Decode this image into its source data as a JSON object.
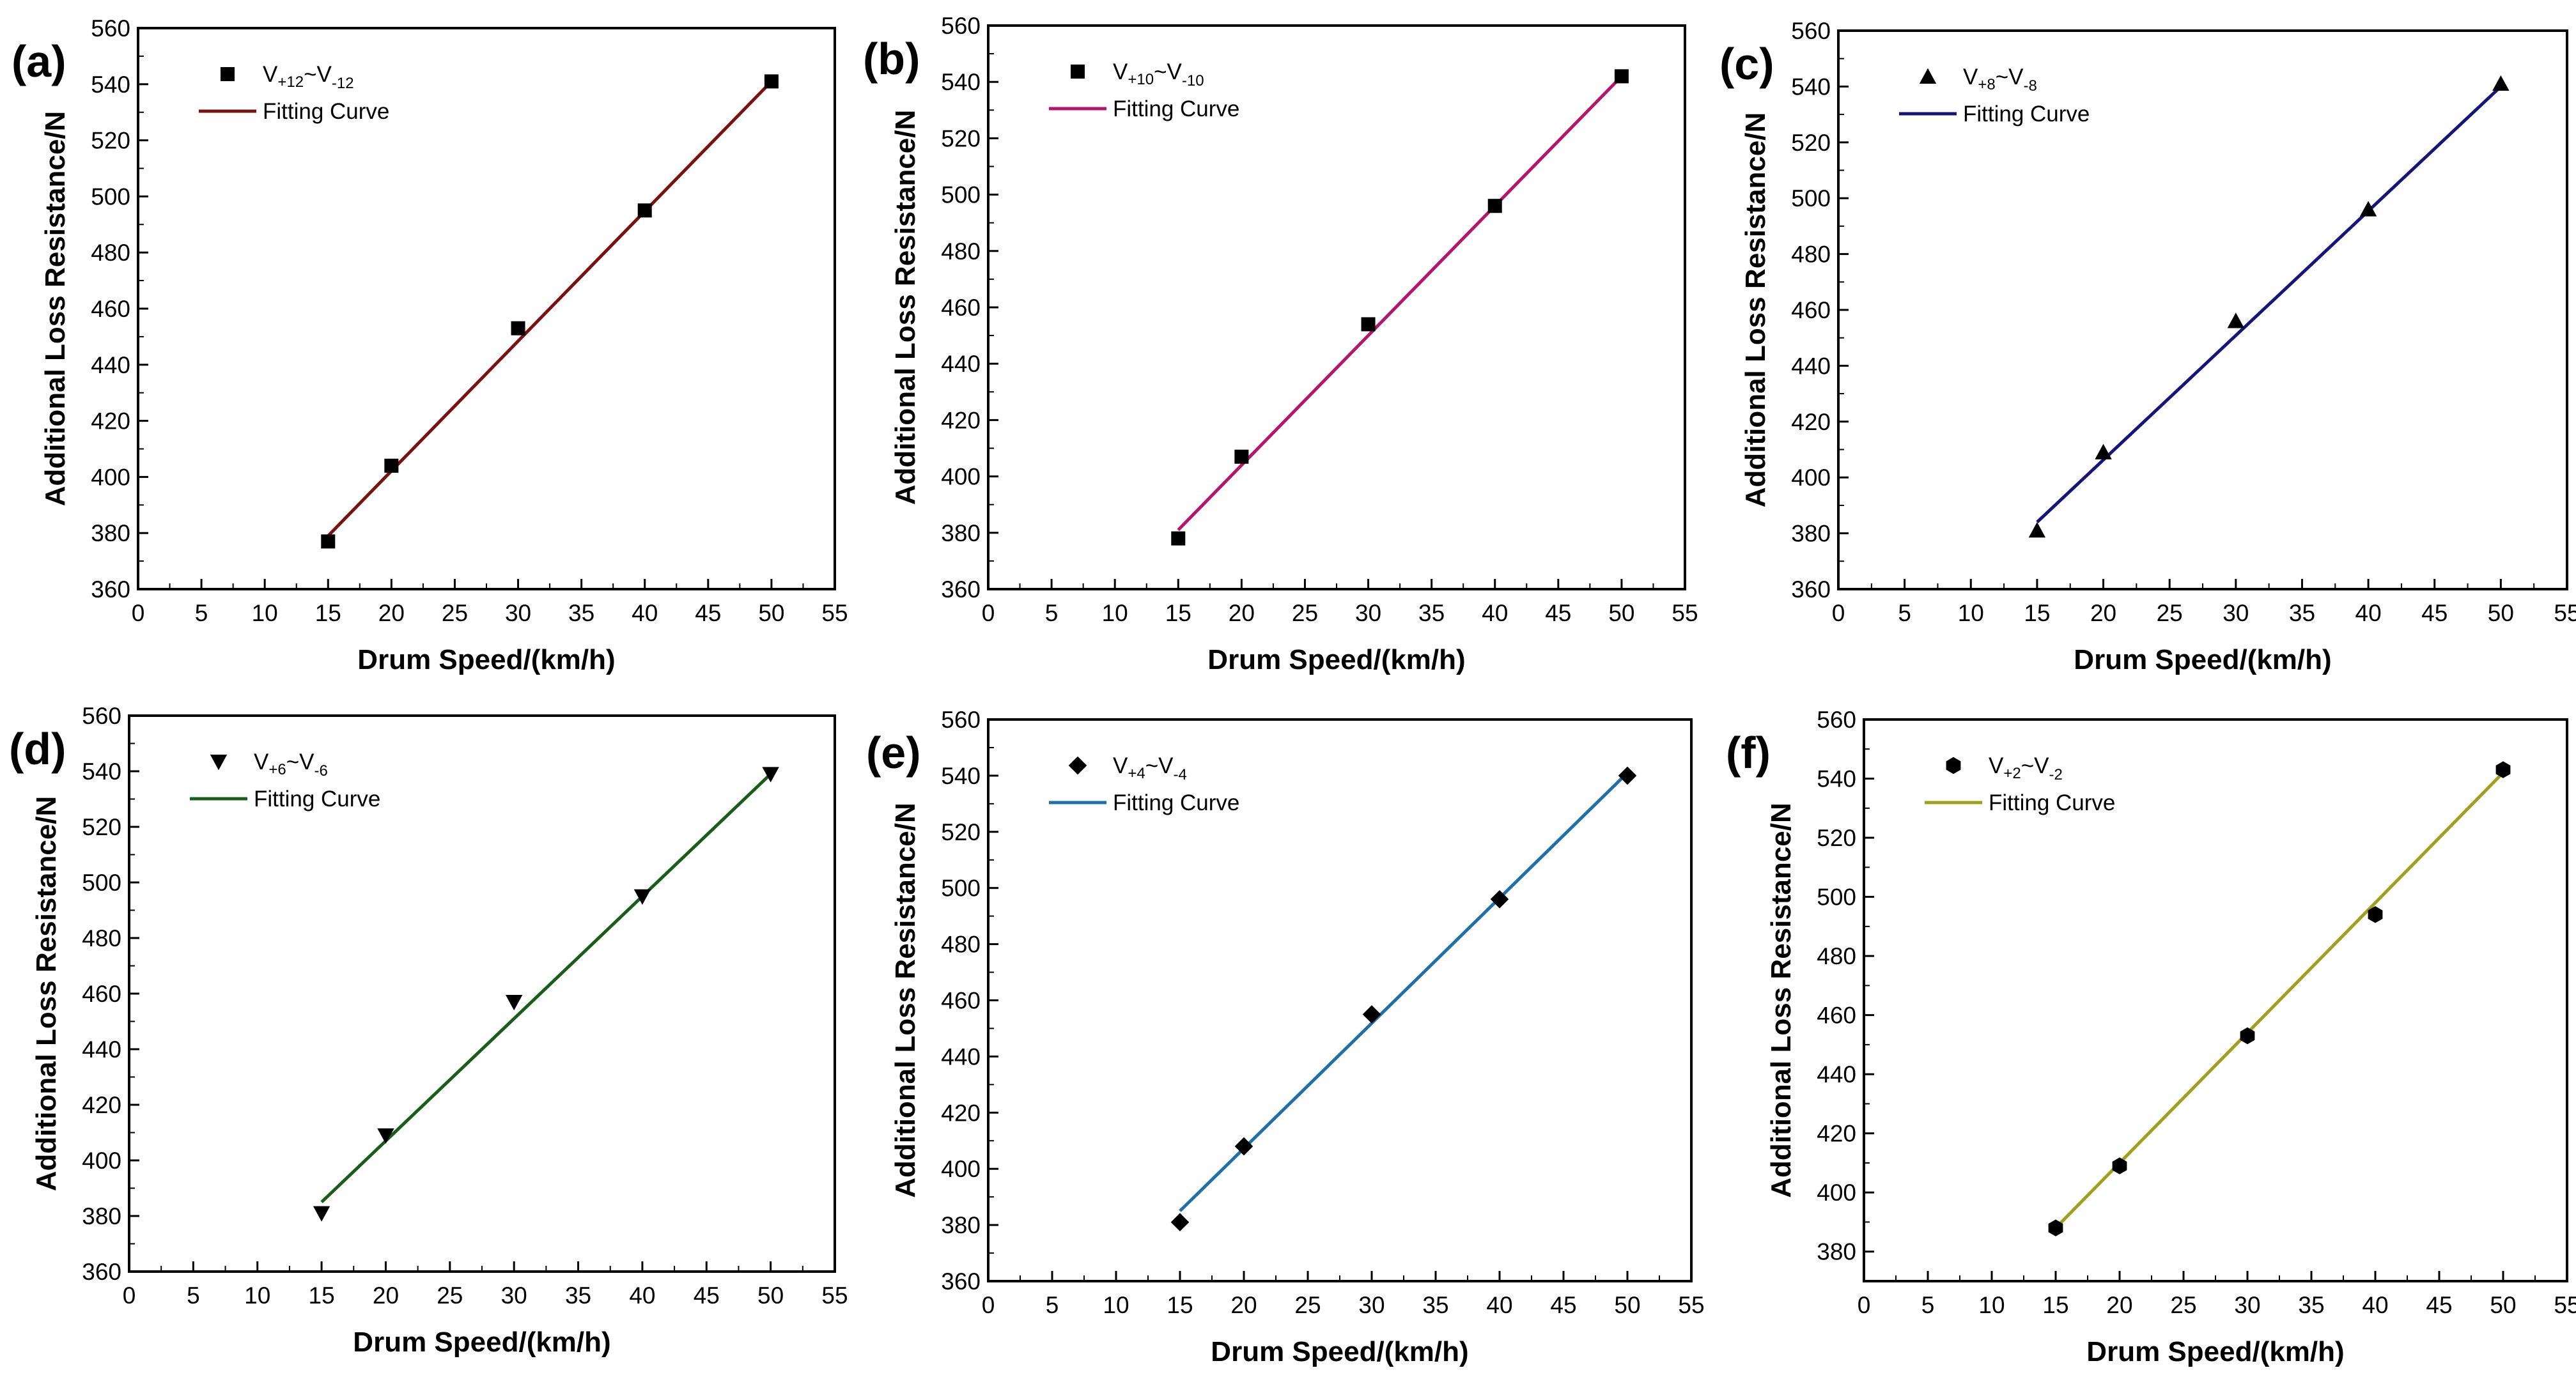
{
  "chart_data": [
    {
      "type": "scatter",
      "panel": "(a)",
      "title": "",
      "xlabel": "Drum Speed/(km/h)",
      "ylabel": "Additional Loss Resistance/N",
      "xlim": [
        0,
        55
      ],
      "ylim": [
        360,
        560
      ],
      "xticks": [
        0,
        5,
        10,
        15,
        20,
        25,
        30,
        35,
        40,
        45,
        50,
        55
      ],
      "yticks": [
        360,
        380,
        400,
        420,
        440,
        460,
        480,
        500,
        520,
        540,
        560
      ],
      "legend": {
        "position": "top-left",
        "series_label": {
          "base": "V",
          "sup": "+12",
          "mid": "~V",
          "sub": "-12"
        },
        "fit_label": "Fitting Curve"
      },
      "marker": "square",
      "line_color": "#7a1010",
      "x": [
        15,
        20,
        30,
        40,
        50
      ],
      "y": [
        377,
        404,
        453,
        495,
        541
      ],
      "fit": {
        "x": [
          15,
          50
        ],
        "y": [
          379,
          541
        ]
      }
    },
    {
      "type": "scatter",
      "panel": "(b)",
      "title": "",
      "xlabel": "Drum Speed/(km/h)",
      "ylabel": "Additional Loss Resistance/N",
      "xlim": [
        0,
        55
      ],
      "ylim": [
        360,
        560
      ],
      "xticks": [
        0,
        5,
        10,
        15,
        20,
        25,
        30,
        35,
        40,
        45,
        50,
        55
      ],
      "yticks": [
        360,
        380,
        400,
        420,
        440,
        460,
        480,
        500,
        520,
        540,
        560
      ],
      "legend": {
        "position": "top-left",
        "series_label": {
          "base": "V",
          "sup": "+10",
          "mid": "~V",
          "sub": "-10"
        },
        "fit_label": "Fitting Curve"
      },
      "marker": "square",
      "line_color": "#b5156b",
      "x": [
        15,
        20,
        30,
        40,
        50
      ],
      "y": [
        378,
        407,
        454,
        496,
        542
      ],
      "fit": {
        "x": [
          15,
          50
        ],
        "y": [
          381,
          542
        ]
      }
    },
    {
      "type": "scatter",
      "panel": "(c)",
      "title": "",
      "xlabel": "Drum Speed/(km/h)",
      "ylabel": "Additional Loss Resistance/N",
      "xlim": [
        0,
        55
      ],
      "ylim": [
        360,
        560
      ],
      "xticks": [
        0,
        5,
        10,
        15,
        20,
        25,
        30,
        35,
        40,
        45,
        50,
        55
      ],
      "yticks": [
        360,
        380,
        400,
        420,
        440,
        460,
        480,
        500,
        520,
        540,
        560
      ],
      "legend": {
        "position": "top-left",
        "series_label": {
          "base": "V",
          "sup": "+8",
          "mid": "~V",
          "sub": "-8"
        },
        "fit_label": "Fitting Curve"
      },
      "marker": "triangle-up",
      "line_color": "#14147a",
      "x": [
        15,
        20,
        30,
        40,
        50
      ],
      "y": [
        381,
        409,
        456,
        496,
        541
      ],
      "fit": {
        "x": [
          15,
          50
        ],
        "y": [
          384,
          540
        ]
      }
    },
    {
      "type": "scatter",
      "panel": "(d)",
      "title": "",
      "xlabel": "Drum Speed/(km/h)",
      "ylabel": "Additional Loss Resistance/N",
      "xlim": [
        0,
        55
      ],
      "ylim": [
        360,
        560
      ],
      "xticks": [
        0,
        5,
        10,
        15,
        20,
        25,
        30,
        35,
        40,
        45,
        50,
        55
      ],
      "yticks": [
        360,
        380,
        400,
        420,
        440,
        460,
        480,
        500,
        520,
        540,
        560
      ],
      "legend": {
        "position": "top-left",
        "series_label": {
          "base": "V",
          "sup": "+6",
          "mid": "~V",
          "sub": "-6"
        },
        "fit_label": "Fitting Curve"
      },
      "marker": "triangle-down",
      "line_color": "#1a5c1a",
      "x": [
        15,
        20,
        30,
        40,
        50
      ],
      "y": [
        381,
        409,
        457,
        495,
        539
      ],
      "fit": {
        "x": [
          15,
          50
        ],
        "y": [
          385,
          539
        ]
      }
    },
    {
      "type": "scatter",
      "panel": "(e)",
      "title": "",
      "xlabel": "Drum Speed/(km/h)",
      "ylabel": "Additional Loss Resistance/N",
      "xlim": [
        0,
        55
      ],
      "ylim": [
        360,
        560
      ],
      "xticks": [
        0,
        5,
        10,
        15,
        20,
        25,
        30,
        35,
        40,
        45,
        50,
        55
      ],
      "yticks": [
        360,
        380,
        400,
        420,
        440,
        460,
        480,
        500,
        520,
        540,
        560
      ],
      "legend": {
        "position": "top-left",
        "series_label": {
          "base": "V",
          "sup": "+4",
          "mid": "~V",
          "sub": "-4"
        },
        "fit_label": "Fitting Curve"
      },
      "marker": "diamond",
      "line_color": "#1f6fa8",
      "x": [
        15,
        20,
        30,
        40,
        50
      ],
      "y": [
        381,
        408,
        455,
        496,
        540
      ],
      "fit": {
        "x": [
          15,
          50
        ],
        "y": [
          385,
          541
        ]
      }
    },
    {
      "type": "scatter",
      "panel": "(f)",
      "title": "",
      "xlabel": "Drum Speed/(km/h)",
      "ylabel": "Additional Loss Resistance/N",
      "xlim": [
        0,
        55
      ],
      "ylim": [
        370,
        560
      ],
      "xticks": [
        0,
        5,
        10,
        15,
        20,
        25,
        30,
        35,
        40,
        45,
        50,
        55
      ],
      "yticks": [
        380,
        400,
        420,
        440,
        460,
        480,
        500,
        520,
        540,
        560
      ],
      "legend": {
        "position": "top-left",
        "series_label": {
          "base": "V",
          "sup": "+2",
          "mid": "~V",
          "sub": "-2"
        },
        "fit_label": "Fitting Curve"
      },
      "marker": "hexagon",
      "line_color": "#a0a01e",
      "x": [
        15,
        20,
        30,
        40,
        50
      ],
      "y": [
        388,
        409,
        453,
        494,
        543
      ],
      "fit": {
        "x": [
          15,
          50
        ],
        "y": [
          388,
          542
        ]
      }
    }
  ]
}
